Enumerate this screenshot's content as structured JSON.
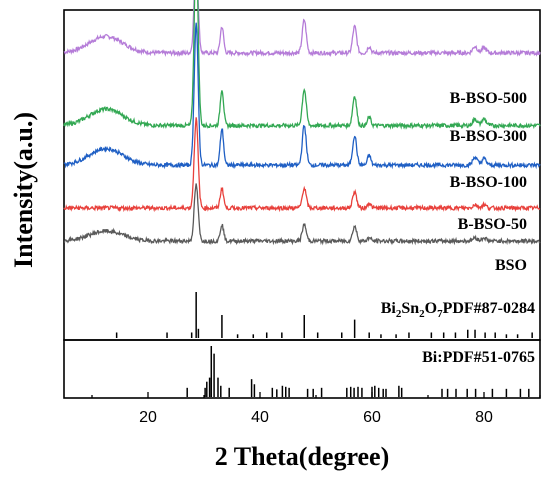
{
  "chart_data": {
    "type": "line",
    "xlabel": "2 Theta(degree)",
    "ylabel": "Intensity(a.u.)",
    "xlim": [
      5,
      90
    ],
    "xticks": [
      20,
      40,
      60,
      80
    ],
    "yticks": "none",
    "grid": false,
    "legend": "none",
    "series": [
      {
        "name": "B-BSO-500",
        "color": "#b57cd8",
        "baseline": 0.87,
        "peaks": [
          [
            12.5,
            0.05,
            3.0
          ],
          [
            28.6,
            0.28,
            0.35
          ],
          [
            33.2,
            0.08,
            0.3
          ],
          [
            47.9,
            0.1,
            0.35
          ],
          [
            56.9,
            0.08,
            0.35
          ],
          [
            59.5,
            0.02,
            0.3
          ],
          [
            78.4,
            0.02,
            0.4
          ],
          [
            80.0,
            0.015,
            0.4
          ]
        ]
      },
      {
        "name": "B-BSO-300",
        "color": "#33a853",
        "baseline": 0.65,
        "peaks": [
          [
            12.5,
            0.05,
            3.0
          ],
          [
            28.6,
            0.52,
            0.35
          ],
          [
            33.2,
            0.11,
            0.3
          ],
          [
            47.9,
            0.11,
            0.35
          ],
          [
            56.9,
            0.09,
            0.35
          ],
          [
            59.5,
            0.025,
            0.3
          ],
          [
            78.4,
            0.02,
            0.4
          ],
          [
            80.0,
            0.02,
            0.4
          ]
        ]
      },
      {
        "name": "B-BSO-100",
        "color": "#1f5fc4",
        "baseline": 0.53,
        "peaks": [
          [
            12.5,
            0.05,
            3.0
          ],
          [
            28.6,
            0.43,
            0.35
          ],
          [
            33.2,
            0.11,
            0.3
          ],
          [
            47.9,
            0.12,
            0.35
          ],
          [
            56.9,
            0.09,
            0.35
          ],
          [
            59.5,
            0.03,
            0.3
          ],
          [
            78.4,
            0.025,
            0.4
          ],
          [
            80.0,
            0.02,
            0.4
          ]
        ]
      },
      {
        "name": "B-BSO-50",
        "color": "#e8413c",
        "baseline": 0.4,
        "peaks": [
          [
            28.6,
            0.27,
            0.35
          ],
          [
            33.2,
            0.06,
            0.3
          ],
          [
            47.9,
            0.06,
            0.35
          ],
          [
            56.9,
            0.05,
            0.35
          ],
          [
            59.5,
            0.015,
            0.3
          ],
          [
            78.4,
            0.01,
            0.4
          ],
          [
            80.0,
            0.01,
            0.4
          ]
        ]
      },
      {
        "name": "BSO",
        "color": "#5a5a5a",
        "baseline": 0.3,
        "peaks": [
          [
            12.5,
            0.03,
            3.0
          ],
          [
            28.6,
            0.17,
            0.35
          ],
          [
            33.2,
            0.05,
            0.3
          ],
          [
            47.9,
            0.05,
            0.35
          ],
          [
            56.9,
            0.045,
            0.35
          ],
          [
            59.5,
            0.01,
            0.3
          ],
          [
            78.4,
            0.01,
            0.4
          ],
          [
            80.0,
            0.01,
            0.4
          ]
        ]
      }
    ],
    "reference_panels": [
      {
        "name": "Bi2Sn2O7 PDF#87-0284",
        "label_main": "Bi",
        "label_sub1": "2",
        "label_mid": "Sn",
        "label_sub2": "2",
        "label_mid2": "O",
        "label_sub3": "7",
        "label_tail": "PDF#87-0284",
        "lines": [
          [
            14.4,
            0.12
          ],
          [
            23.4,
            0.12
          ],
          [
            27.8,
            0.12
          ],
          [
            28.6,
            1.0
          ],
          [
            29.0,
            0.2
          ],
          [
            33.2,
            0.5
          ],
          [
            36.0,
            0.08
          ],
          [
            38.8,
            0.08
          ],
          [
            41.2,
            0.12
          ],
          [
            43.9,
            0.12
          ],
          [
            47.9,
            0.5
          ],
          [
            50.3,
            0.12
          ],
          [
            54.6,
            0.12
          ],
          [
            56.9,
            0.4
          ],
          [
            59.5,
            0.12
          ],
          [
            61.6,
            0.08
          ],
          [
            64.3,
            0.08
          ],
          [
            66.6,
            0.12
          ],
          [
            70.6,
            0.12
          ],
          [
            72.8,
            0.12
          ],
          [
            74.9,
            0.12
          ],
          [
            77.1,
            0.18
          ],
          [
            78.4,
            0.18
          ],
          [
            80.2,
            0.12
          ],
          [
            82.0,
            0.12
          ],
          [
            84.0,
            0.08
          ],
          [
            86.0,
            0.08
          ],
          [
            88.6,
            0.12
          ]
        ]
      },
      {
        "name": "Bi:PDF#51-0765",
        "label_main": "Bi:PDF#51-0765",
        "lines": [
          [
            27.0,
            0.18
          ],
          [
            30.2,
            0.18
          ],
          [
            30.5,
            0.3
          ],
          [
            31.0,
            0.38
          ],
          [
            31.3,
            1.0
          ],
          [
            31.8,
            0.85
          ],
          [
            32.5,
            0.38
          ],
          [
            33.0,
            0.22
          ],
          [
            34.5,
            0.18
          ],
          [
            38.5,
            0.35
          ],
          [
            39.0,
            0.25
          ],
          [
            42.2,
            0.18
          ],
          [
            43.0,
            0.15
          ],
          [
            44.0,
            0.22
          ],
          [
            44.6,
            0.2
          ],
          [
            45.2,
            0.18
          ],
          [
            48.5,
            0.16
          ],
          [
            49.5,
            0.16
          ],
          [
            51.0,
            0.18
          ],
          [
            55.5,
            0.18
          ],
          [
            56.2,
            0.2
          ],
          [
            56.8,
            0.18
          ],
          [
            57.5,
            0.2
          ],
          [
            58.2,
            0.18
          ],
          [
            60.0,
            0.2
          ],
          [
            60.5,
            0.22
          ],
          [
            61.2,
            0.18
          ],
          [
            62.0,
            0.16
          ],
          [
            62.5,
            0.16
          ],
          [
            64.8,
            0.22
          ],
          [
            65.3,
            0.18
          ],
          [
            72.5,
            0.16
          ],
          [
            73.5,
            0.16
          ],
          [
            75.0,
            0.16
          ],
          [
            77.0,
            0.16
          ],
          [
            78.5,
            0.16
          ],
          [
            81.5,
            0.16
          ],
          [
            84.0,
            0.16
          ],
          [
            86.5,
            0.16
          ],
          [
            88.0,
            0.16
          ]
        ]
      }
    ]
  }
}
